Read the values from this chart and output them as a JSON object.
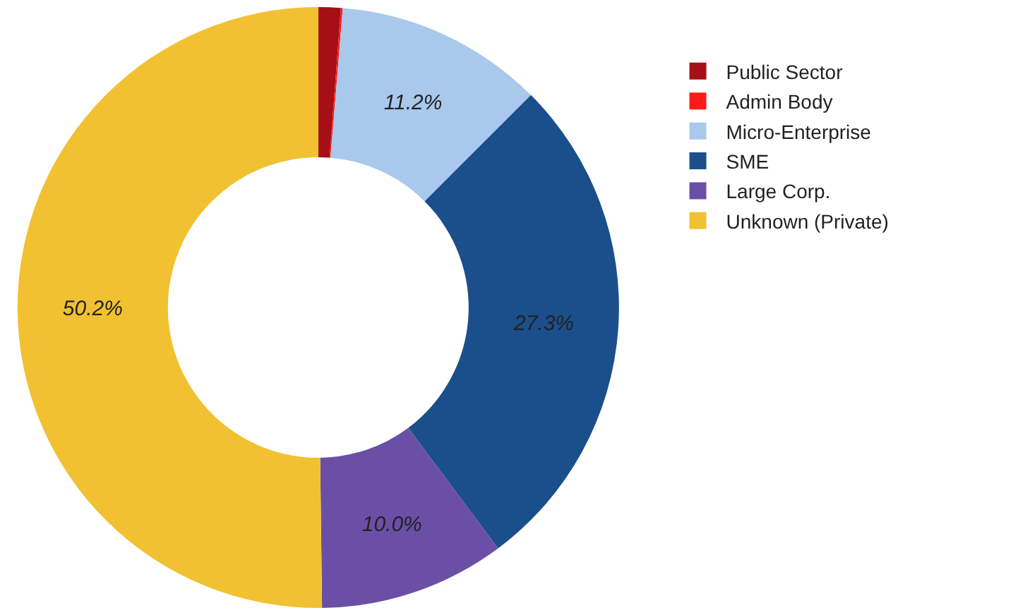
{
  "chart_data": {
    "type": "donut",
    "categories": [
      "Public Sector",
      "Admin Body",
      "Micro-Enterprise",
      "SME",
      "Large Corp.",
      "Unknown (Private)"
    ],
    "values": [
      1.2,
      0.1,
      11.2,
      27.3,
      10.0,
      50.2
    ],
    "colors": [
      "#a50f15",
      "#ff1a1a",
      "#a9c9ec",
      "#1b4f8c",
      "#6b4fa6",
      "#f2c131"
    ],
    "value_labels": [
      null,
      null,
      "11.2%",
      "27.3%",
      "10.0%",
      "50.2%"
    ],
    "legend": "right"
  }
}
